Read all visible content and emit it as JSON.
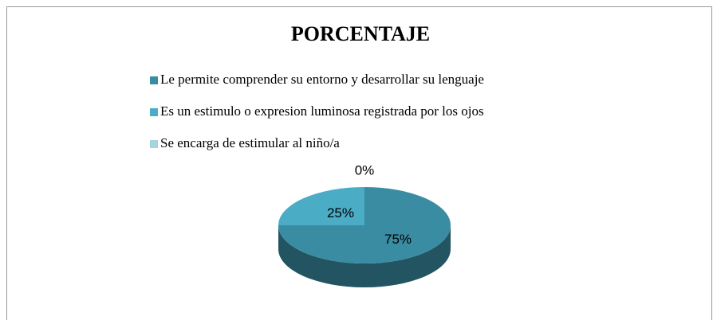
{
  "chart_data": {
    "type": "pie3d",
    "title": "PORCENTAJE",
    "categories": [
      "Le permite comprender su entorno y desarrollar su lenguaje",
      "Es un estimulo o expresion luminosa registrada por los ojos",
      "Se encarga de estimular al niño/a"
    ],
    "values": [
      75,
      25,
      0
    ],
    "value_labels": [
      "75%",
      "25%",
      "0%"
    ],
    "colors": [
      "#3a8ca3",
      "#4bacc6",
      "#a5d3df"
    ],
    "legend": "top"
  }
}
